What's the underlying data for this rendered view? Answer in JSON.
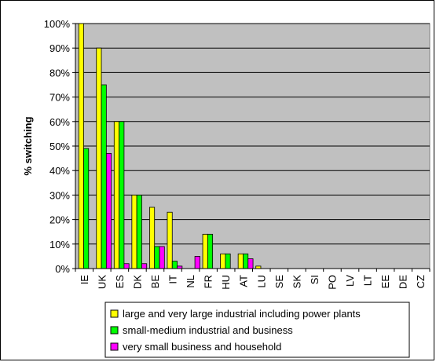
{
  "chart_data": {
    "type": "bar",
    "title": "",
    "ylabel": "% switching",
    "xlabel": "",
    "ylim": [
      0,
      100
    ],
    "yticks": [
      "0%",
      "10%",
      "20%",
      "30%",
      "40%",
      "50%",
      "60%",
      "70%",
      "80%",
      "90%",
      "100%"
    ],
    "grid": true,
    "legend_position": "bottom",
    "plot_background": "#c0c0c0",
    "categories": [
      "IE",
      "UK",
      "ES",
      "DK",
      "BE",
      "IT",
      "NL",
      "FR",
      "HU",
      "AT",
      "LU",
      "SE",
      "SK",
      "SI",
      "PO",
      "LV",
      "LT",
      "EE",
      "DE",
      "CZ"
    ],
    "series": [
      {
        "name": "large and very large industrial including power plants",
        "color": "#ffff00",
        "values": [
          100,
          90,
          60,
          30,
          25,
          23,
          0,
          14,
          6,
          6,
          1,
          0,
          0,
          0,
          0,
          0,
          0,
          0,
          0,
          0
        ]
      },
      {
        "name": "small-medium industrial and business",
        "color": "#00ff00",
        "values": [
          49,
          75,
          60,
          30,
          9,
          3,
          0,
          14,
          6,
          6,
          0,
          0,
          0,
          0,
          0,
          0,
          0,
          0,
          0,
          0
        ]
      },
      {
        "name": "very small business and household",
        "color": "#ff00ff",
        "values": [
          0,
          47,
          2,
          2,
          9,
          1,
          5,
          0,
          0,
          4,
          0,
          0,
          0,
          0,
          0,
          0,
          0,
          0,
          0,
          0
        ]
      }
    ]
  }
}
